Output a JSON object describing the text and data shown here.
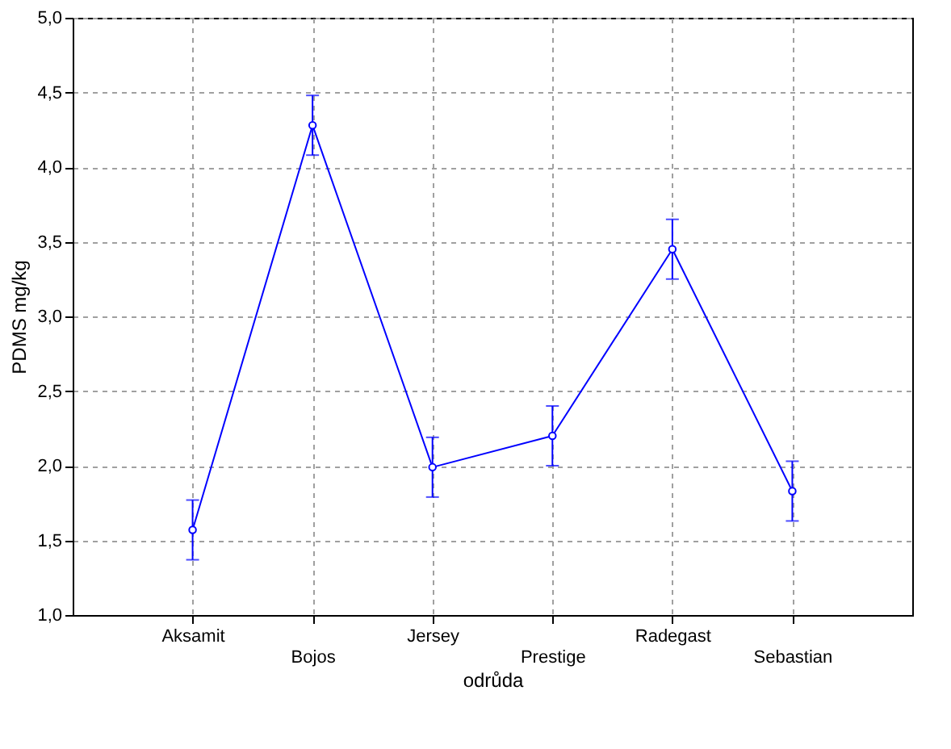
{
  "chart_data": {
    "type": "line",
    "xlabel": "odrůda",
    "ylabel": "PDMS  mg/kg",
    "categories": [
      "Aksamit",
      "Bojos",
      "Jersey",
      "Prestige",
      "Radegast",
      "Sebastian"
    ],
    "series": [
      {
        "color": "#0000ff",
        "values": [
          1.57,
          4.28,
          1.99,
          2.2,
          3.45,
          1.83
        ],
        "errors": [
          0.2,
          0.2,
          0.2,
          0.2,
          0.2,
          0.2
        ]
      }
    ],
    "ylim": [
      1.0,
      5.0
    ],
    "yticks": [
      {
        "value": 1.0,
        "label": "1,0"
      },
      {
        "value": 1.5,
        "label": "1,5"
      },
      {
        "value": 2.0,
        "label": "2,0"
      },
      {
        "value": 2.5,
        "label": "2,5"
      },
      {
        "value": 3.0,
        "label": "3,0"
      },
      {
        "value": 3.5,
        "label": "3,5"
      },
      {
        "value": 4.0,
        "label": "4,0"
      },
      {
        "value": 4.5,
        "label": "4,5"
      },
      {
        "value": 5.0,
        "label": "5,0"
      }
    ],
    "grid": true,
    "marker": "circle",
    "line_style": "solid"
  }
}
